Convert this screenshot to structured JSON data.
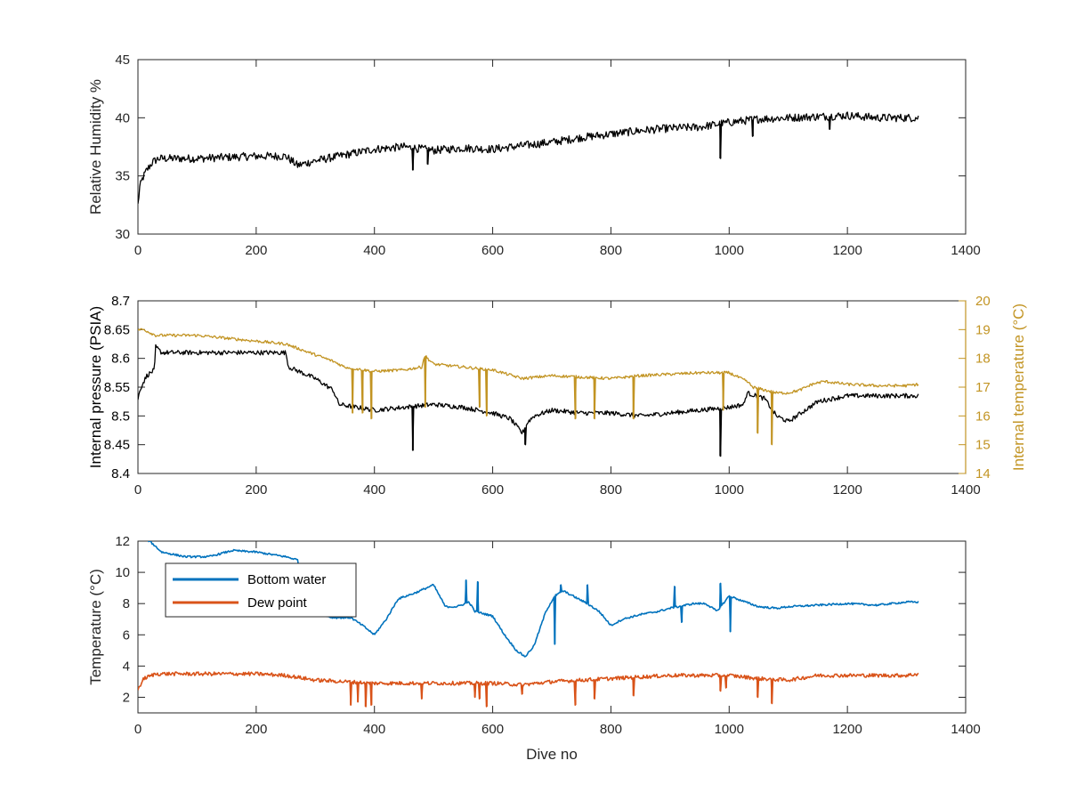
{
  "figure": {
    "background": "#ffffff",
    "axis_color": "#262626"
  },
  "chart_data": [
    {
      "type": "line",
      "xlabel": "",
      "ylabel": "Relative Humidity %",
      "xlim": [
        0,
        1400
      ],
      "ylim": [
        30,
        45
      ],
      "xticks": [
        0,
        200,
        400,
        600,
        800,
        1000,
        1200,
        1400
      ],
      "yticks": [
        30,
        35,
        40,
        45
      ],
      "grid": false,
      "noisy": true,
      "series": [
        {
          "color": "#000000",
          "noise": 0.35,
          "x": [
            0,
            3,
            8,
            15,
            25,
            35,
            60,
            100,
            150,
            200,
            250,
            270,
            300,
            350,
            400,
            450,
            500,
            550,
            600,
            650,
            700,
            750,
            800,
            850,
            900,
            950,
            1000,
            1050,
            1100,
            1150,
            1200,
            1250,
            1300,
            1320
          ],
          "y": [
            32.5,
            34,
            34.8,
            35.5,
            36.2,
            36.5,
            36.5,
            36.5,
            36.6,
            36.7,
            36.7,
            35.9,
            36.3,
            36.8,
            37.3,
            37.5,
            37.2,
            37.4,
            37.3,
            37.6,
            37.9,
            38.3,
            38.6,
            38.9,
            39.1,
            39.2,
            39.6,
            39.9,
            40.0,
            40.1,
            40.2,
            40.0,
            40.0,
            40.0
          ]
        }
      ],
      "spikes": [
        {
          "series": 0,
          "x": 465,
          "y": 35.5
        },
        {
          "series": 0,
          "x": 490,
          "y": 36.0
        },
        {
          "series": 0,
          "x": 985,
          "y": 36.5
        },
        {
          "series": 0,
          "x": 1040,
          "y": 38.4
        },
        {
          "series": 0,
          "x": 1170,
          "y": 39.0
        }
      ]
    },
    {
      "type": "line",
      "xlabel": "",
      "ylabel": "Internal pressure (PSIA)",
      "y2label": "Internal temperature (°C)",
      "xlim": [
        0,
        1400
      ],
      "ylim": [
        8.4,
        8.7
      ],
      "y2lim": [
        14,
        20
      ],
      "xticks": [
        0,
        200,
        400,
        600,
        800,
        1000,
        1200,
        1400
      ],
      "yticks": [
        8.4,
        8.45,
        8.5,
        8.55,
        8.6,
        8.65,
        8.7
      ],
      "y2ticks": [
        14,
        15,
        16,
        17,
        18,
        19,
        20
      ],
      "y2_color": "#c29423",
      "grid": false,
      "noisy": true,
      "series": [
        {
          "axis": "left",
          "color": "#000000",
          "noise": 0.004,
          "x": [
            0,
            5,
            15,
            28,
            30,
            40,
            100,
            200,
            250,
            255,
            300,
            330,
            340,
            400,
            450,
            500,
            550,
            600,
            630,
            650,
            660,
            670,
            700,
            750,
            800,
            850,
            900,
            950,
            1000,
            1025,
            1030,
            1060,
            1080,
            1100,
            1150,
            1200,
            1250,
            1300,
            1320
          ],
          "y": [
            8.53,
            8.55,
            8.57,
            8.58,
            8.62,
            8.61,
            8.61,
            8.61,
            8.61,
            8.585,
            8.565,
            8.545,
            8.52,
            8.51,
            8.515,
            8.52,
            8.515,
            8.505,
            8.495,
            8.47,
            8.49,
            8.5,
            8.51,
            8.505,
            8.505,
            8.5,
            8.505,
            8.51,
            8.515,
            8.52,
            8.54,
            8.53,
            8.5,
            8.49,
            8.525,
            8.535,
            8.535,
            8.535,
            8.535
          ]
        },
        {
          "axis": "right",
          "color": "#c29423",
          "noise": 0.05,
          "x": [
            0,
            10,
            30,
            60,
            100,
            150,
            200,
            250,
            290,
            330,
            350,
            380,
            400,
            450,
            480,
            485,
            500,
            550,
            600,
            650,
            700,
            750,
            800,
            850,
            900,
            950,
            1000,
            1030,
            1040,
            1060,
            1080,
            1100,
            1120,
            1140,
            1160,
            1200,
            1250,
            1300,
            1320
          ],
          "y": [
            19.0,
            19.0,
            18.8,
            18.8,
            18.8,
            18.7,
            18.6,
            18.5,
            18.2,
            17.9,
            17.7,
            17.6,
            17.55,
            17.6,
            17.7,
            18.1,
            17.8,
            17.7,
            17.6,
            17.3,
            17.4,
            17.35,
            17.3,
            17.4,
            17.45,
            17.5,
            17.5,
            17.2,
            17.0,
            16.9,
            16.8,
            16.8,
            16.9,
            17.1,
            17.2,
            17.1,
            17.05,
            17.05,
            17.1
          ]
        }
      ],
      "spikes": [
        {
          "series": 0,
          "x": 465,
          "y": 8.44
        },
        {
          "series": 0,
          "x": 655,
          "y": 8.45
        },
        {
          "series": 0,
          "x": 985,
          "y": 8.43
        },
        {
          "series": 1,
          "x": 363,
          "y": 16.1
        },
        {
          "series": 1,
          "x": 380,
          "y": 16.1
        },
        {
          "series": 1,
          "x": 395,
          "y": 15.9
        },
        {
          "series": 1,
          "x": 486,
          "y": 16.3
        },
        {
          "series": 1,
          "x": 578,
          "y": 16.3
        },
        {
          "series": 1,
          "x": 590,
          "y": 16.0
        },
        {
          "series": 1,
          "x": 740,
          "y": 15.9
        },
        {
          "series": 1,
          "x": 772,
          "y": 15.9
        },
        {
          "series": 1,
          "x": 838,
          "y": 15.9
        },
        {
          "series": 1,
          "x": 990,
          "y": 16.2
        },
        {
          "series": 1,
          "x": 1048,
          "y": 15.4
        },
        {
          "series": 1,
          "x": 1072,
          "y": 15.0
        }
      ]
    },
    {
      "type": "line",
      "xlabel": "Dive no",
      "ylabel": "Temperature (°C)",
      "xlim": [
        0,
        1400
      ],
      "ylim": [
        1,
        12
      ],
      "xticks": [
        0,
        200,
        400,
        600,
        800,
        1000,
        1200,
        1400
      ],
      "yticks": [
        2,
        4,
        6,
        8,
        10,
        12
      ],
      "grid": false,
      "legend": "top-left",
      "noisy": true,
      "series": [
        {
          "name": "Bottom water",
          "color": "#0072bd",
          "noise": 0.06,
          "x": [
            0,
            20,
            40,
            80,
            120,
            160,
            200,
            250,
            270,
            285,
            300,
            330,
            360,
            380,
            400,
            420,
            440,
            470,
            500,
            520,
            540,
            560,
            570,
            600,
            620,
            640,
            655,
            670,
            690,
            705,
            720,
            740,
            760,
            780,
            800,
            820,
            850,
            880,
            900,
            940,
            960,
            980,
            1000,
            1020,
            1050,
            1080,
            1100,
            1150,
            1200,
            1250,
            1300,
            1320
          ],
          "y": [
            12.3,
            12.0,
            11.3,
            11.0,
            11.0,
            11.4,
            11.3,
            11.0,
            10.8,
            8.0,
            7.4,
            7.1,
            7.1,
            6.6,
            6.0,
            7.0,
            8.3,
            8.7,
            9.2,
            7.8,
            7.8,
            8.1,
            7.5,
            7.2,
            6.0,
            5.0,
            4.6,
            5.3,
            7.5,
            8.5,
            8.8,
            8.4,
            8.0,
            7.5,
            6.6,
            7.0,
            7.3,
            7.5,
            7.7,
            8.0,
            8.0,
            7.5,
            8.5,
            8.2,
            7.8,
            7.7,
            7.8,
            7.9,
            8.0,
            7.9,
            8.1,
            8.1
          ]
        },
        {
          "name": "Dew point",
          "color": "#d95319",
          "noise": 0.12,
          "x": [
            0,
            10,
            30,
            100,
            200,
            250,
            300,
            350,
            400,
            450,
            500,
            550,
            600,
            650,
            700,
            750,
            800,
            850,
            900,
            950,
            1000,
            1050,
            1100,
            1150,
            1200,
            1250,
            1300,
            1320
          ],
          "y": [
            2.5,
            3.2,
            3.5,
            3.5,
            3.5,
            3.4,
            3.1,
            3.0,
            2.9,
            2.9,
            2.9,
            2.9,
            2.9,
            2.8,
            3.0,
            3.1,
            3.2,
            3.3,
            3.4,
            3.4,
            3.4,
            3.2,
            3.1,
            3.4,
            3.4,
            3.4,
            3.4,
            3.5
          ]
        }
      ],
      "spikes": [
        {
          "series": 0,
          "x": 555,
          "y": 9.5
        },
        {
          "series": 0,
          "x": 575,
          "y": 9.4
        },
        {
          "series": 0,
          "x": 705,
          "y": 5.4
        },
        {
          "series": 0,
          "x": 715,
          "y": 9.2
        },
        {
          "series": 0,
          "x": 760,
          "y": 9.2
        },
        {
          "series": 0,
          "x": 908,
          "y": 9.1
        },
        {
          "series": 0,
          "x": 920,
          "y": 6.8
        },
        {
          "series": 0,
          "x": 985,
          "y": 9.3
        },
        {
          "series": 0,
          "x": 1002,
          "y": 6.2
        },
        {
          "series": 1,
          "x": 360,
          "y": 1.5
        },
        {
          "series": 1,
          "x": 372,
          "y": 1.7
        },
        {
          "series": 1,
          "x": 385,
          "y": 1.4
        },
        {
          "series": 1,
          "x": 395,
          "y": 1.5
        },
        {
          "series": 1,
          "x": 480,
          "y": 1.9
        },
        {
          "series": 1,
          "x": 570,
          "y": 2.0
        },
        {
          "series": 1,
          "x": 578,
          "y": 1.9
        },
        {
          "series": 1,
          "x": 590,
          "y": 1.4
        },
        {
          "series": 1,
          "x": 650,
          "y": 2.2
        },
        {
          "series": 1,
          "x": 740,
          "y": 1.5
        },
        {
          "series": 1,
          "x": 772,
          "y": 1.9
        },
        {
          "series": 1,
          "x": 838,
          "y": 2.1
        },
        {
          "series": 1,
          "x": 985,
          "y": 2.4
        },
        {
          "series": 1,
          "x": 995,
          "y": 2.6
        },
        {
          "series": 1,
          "x": 1048,
          "y": 2.0
        },
        {
          "series": 1,
          "x": 1072,
          "y": 1.6
        }
      ]
    }
  ]
}
